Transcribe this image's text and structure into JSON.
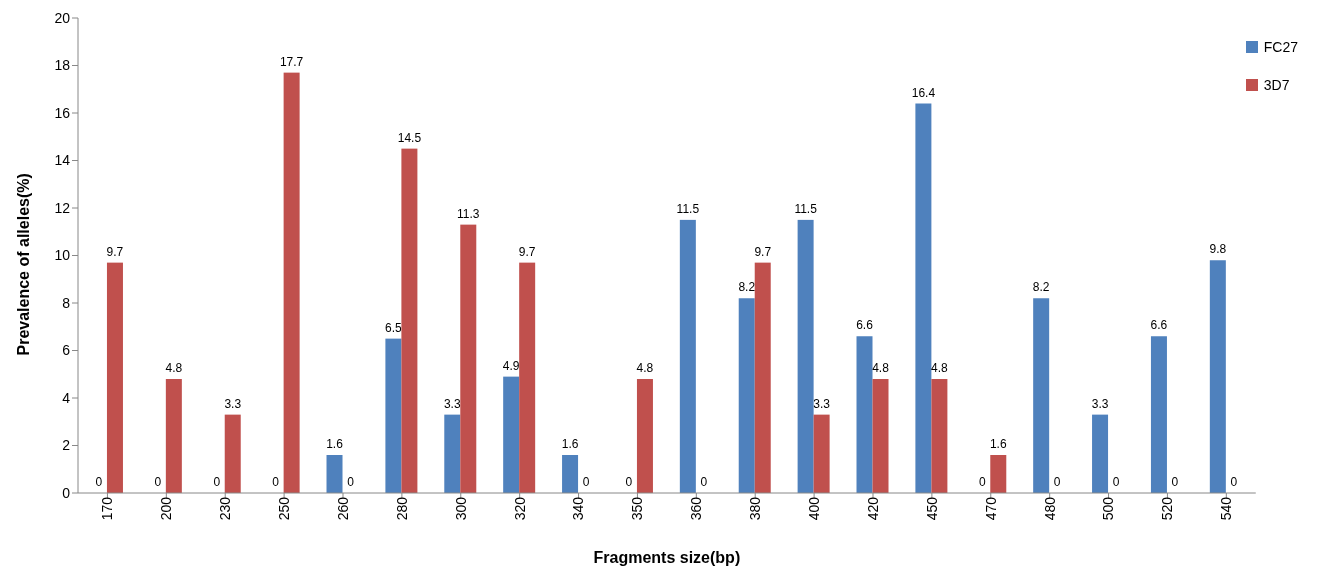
{
  "chart_data": {
    "type": "bar",
    "xlabel": "Fragments size(bp)",
    "ylabel": "Prevalence of alleles(%)",
    "categories": [
      "170",
      "200",
      "230",
      "250",
      "260",
      "280",
      "300",
      "320",
      "340",
      "350",
      "360",
      "380",
      "400",
      "420",
      "450",
      "470",
      "480",
      "500",
      "520",
      "540"
    ],
    "series": [
      {
        "name": "FC27",
        "color": "#4f81bd",
        "values": [
          0,
          0,
          0,
          0,
          1.6,
          6.5,
          3.3,
          4.9,
          1.6,
          0,
          11.5,
          8.2,
          11.5,
          6.6,
          16.4,
          0,
          8.2,
          3.3,
          6.6,
          9.8
        ]
      },
      {
        "name": "3D7",
        "color": "#c0504d",
        "values": [
          9.7,
          4.8,
          3.3,
          17.7,
          0,
          14.5,
          11.3,
          9.7,
          0,
          4.8,
          0,
          9.7,
          3.3,
          4.8,
          4.8,
          1.6,
          0,
          0,
          0,
          0
        ]
      }
    ],
    "ylim": [
      0,
      20
    ],
    "yticks": [
      0,
      2,
      4,
      6,
      8,
      10,
      12,
      14,
      16,
      18,
      20
    ],
    "data_labels": true,
    "legend": "top right",
    "grid": false
  }
}
